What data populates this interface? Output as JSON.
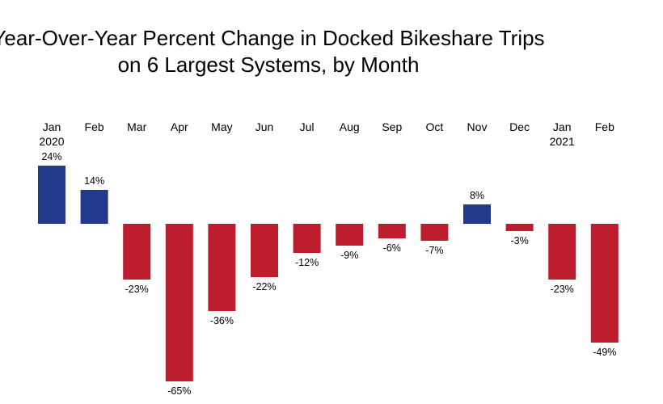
{
  "chart_data": {
    "type": "bar",
    "title": [
      "Year-Over-Year Percent Change in Docked Bikeshare Trips",
      "on 6 Largest Systems, by Month"
    ],
    "categories": [
      [
        "Jan",
        "2020"
      ],
      [
        "Feb"
      ],
      [
        "Mar"
      ],
      [
        "Apr"
      ],
      [
        "May"
      ],
      [
        "Jun"
      ],
      [
        "Jul"
      ],
      [
        "Aug"
      ],
      [
        "Sep"
      ],
      [
        "Oct"
      ],
      [
        "Nov"
      ],
      [
        "Dec"
      ],
      [
        "Jan",
        "2021"
      ],
      [
        "Feb"
      ]
    ],
    "values": [
      24,
      14,
      -23,
      -65,
      -36,
      -22,
      -12,
      -9,
      -6,
      -7,
      8,
      -3,
      -23,
      -49
    ],
    "value_labels": [
      "24%",
      "14%",
      "-23%",
      "-65%",
      "-36%",
      "-22%",
      "-12%",
      "-9%",
      "-6%",
      "-7%",
      "8%",
      "-3%",
      "-23%",
      "-49%"
    ],
    "unit": "%",
    "colors": {
      "positive": "#22388a",
      "negative": "#bc1e2d"
    },
    "grid": false,
    "legend": "none"
  }
}
